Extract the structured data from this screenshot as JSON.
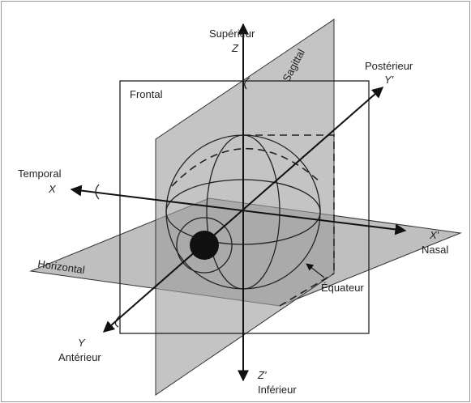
{
  "labels": {
    "superior": "Supérieur",
    "z": "Z",
    "sagittal": "Sagittal",
    "posterior": "Postérieur",
    "y_prime": "Y'",
    "frontal": "Frontal",
    "temporal": "Temporal",
    "x": "X",
    "x_prime": "X'",
    "nasal": "Nasal",
    "horizontal": "Horizontal",
    "equator": "Équateur",
    "y": "Y",
    "anterior": "Antérieur",
    "z_prime": "Z'",
    "inferior": "Inférieur"
  }
}
